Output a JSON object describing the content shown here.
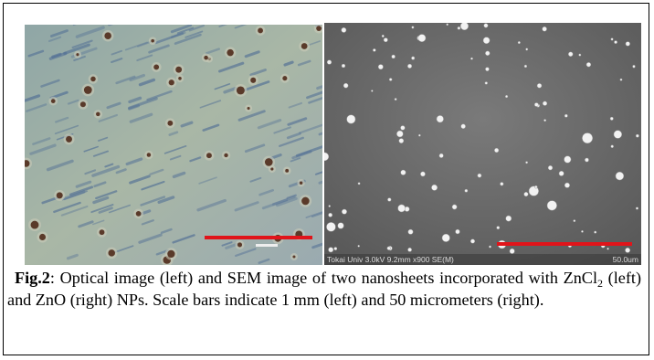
{
  "figure": {
    "label": "Fig.2",
    "caption_before_sub": ": Optical image (left) and SEM image of two nanosheets incorporated with ZnCl",
    "caption_sub": "2",
    "caption_after_sub": " (left) and ZnO (right) NPs. Scale bars indicate 1 mm (left) and 50 micrometers (right).",
    "sem_info": "Tokai Univ 3.0kV 9.2mm x900 SE(M)",
    "sem_scale": "50.0um"
  }
}
